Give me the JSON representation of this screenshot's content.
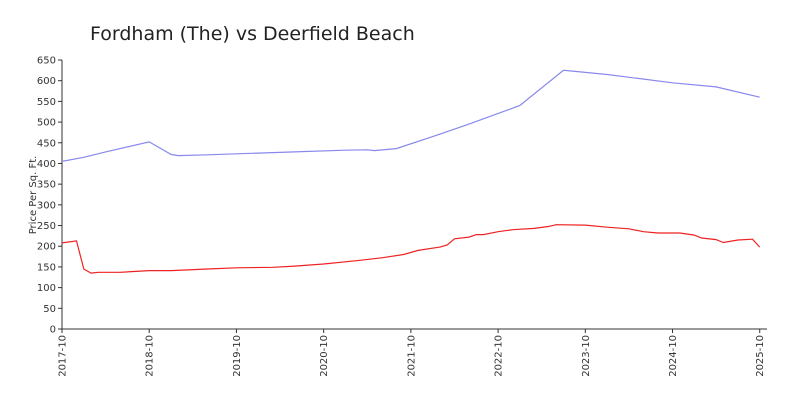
{
  "chart_data": {
    "type": "line",
    "title": "Fordham (The) vs Deerfield Beach",
    "ylabel": "Price Per Sq. Ft.",
    "xlim": [
      "2017-10",
      "2025-11"
    ],
    "xticks": [
      "2017-10",
      "2018-10",
      "2019-10",
      "2020-10",
      "2021-10",
      "2022-10",
      "2023-10",
      "2024-10",
      "2025-10"
    ],
    "ylim": [
      0,
      650
    ],
    "yticks": [
      0,
      50,
      100,
      150,
      200,
      250,
      300,
      350,
      400,
      450,
      500,
      550,
      600,
      650
    ],
    "series": [
      {
        "color": "#8888ee",
        "x": [
          "2017-10",
          "2018-01",
          "2018-04",
          "2018-10",
          "2019-01",
          "2019-02",
          "2019-06",
          "2020-01",
          "2020-06",
          "2021-01",
          "2021-04",
          "2021-05",
          "2021-08",
          "2022-01",
          "2022-06",
          "2023-01",
          "2023-07",
          "2024-01",
          "2024-10",
          "2025-04",
          "2025-10"
        ],
        "values": [
          405,
          415,
          428,
          452,
          422,
          419,
          421,
          425,
          428,
          432,
          433,
          431,
          436,
          465,
          495,
          540,
          625,
          615,
          595,
          585,
          560
        ]
      },
      {
        "color": "#ee2222",
        "x": [
          "2017-10",
          "2017-12",
          "2018-01",
          "2018-02",
          "2018-03",
          "2018-06",
          "2018-10",
          "2019-01",
          "2019-06",
          "2019-10",
          "2020-03",
          "2020-06",
          "2020-10",
          "2021-03",
          "2021-06",
          "2021-09",
          "2021-11",
          "2022-02",
          "2022-03",
          "2022-04",
          "2022-06",
          "2022-07",
          "2022-08",
          "2022-10",
          "2022-12",
          "2023-03",
          "2023-05",
          "2023-06",
          "2023-10",
          "2024-01",
          "2024-04",
          "2024-06",
          "2024-08",
          "2024-11",
          "2025-01",
          "2025-02",
          "2025-04",
          "2025-05",
          "2025-07",
          "2025-09",
          "2025-10"
        ],
        "values": [
          208,
          213,
          145,
          135,
          137,
          137,
          141,
          141,
          145,
          148,
          149,
          152,
          157,
          166,
          172,
          180,
          190,
          198,
          203,
          218,
          222,
          228,
          228,
          235,
          240,
          243,
          248,
          252,
          251,
          246,
          242,
          235,
          232,
          232,
          227,
          220,
          216,
          209,
          215,
          217,
          198
        ]
      }
    ]
  }
}
